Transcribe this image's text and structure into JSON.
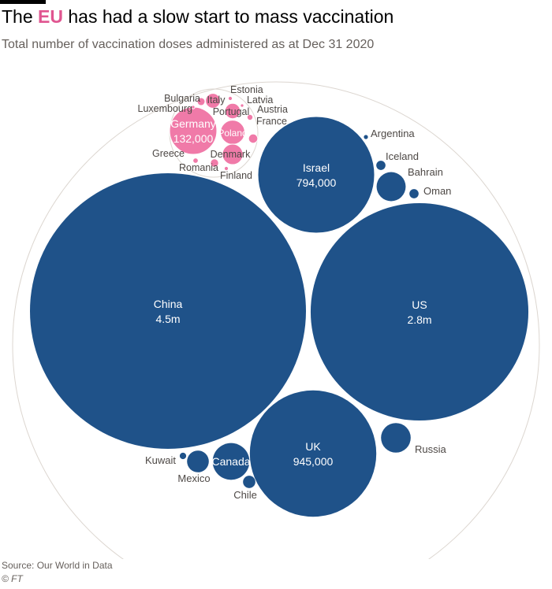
{
  "header": {
    "title_before": "The ",
    "title_highlight": "EU",
    "title_after": " has had a slow start to mass vaccination",
    "subtitle": "Total number of vaccination doses administered as at Dec 31 2020"
  },
  "footer": {
    "source": "Source: Our World in Data",
    "credit": "© FT"
  },
  "colors": {
    "eu": "#f07aa8",
    "eu_stroke": "#ffffff",
    "other": "#1f5289",
    "outline": "#dcd6d0",
    "label_dark": "#4d4845",
    "label_light": "#ffffff"
  },
  "chart_data": {
    "type": "packed-bubble",
    "unit": "doses",
    "groups": [
      "EU",
      "Non-EU"
    ],
    "items": [
      {
        "name": "China",
        "value": 4500000,
        "display": "4.5m",
        "group": "Non-EU"
      },
      {
        "name": "US",
        "value": 2800000,
        "display": "2.8m",
        "group": "Non-EU"
      },
      {
        "name": "UK",
        "value": 945000,
        "display": "945,000",
        "group": "Non-EU"
      },
      {
        "name": "Israel",
        "value": 794000,
        "display": "794,000",
        "group": "Non-EU"
      },
      {
        "name": "Germany",
        "value": 132000,
        "display": "132,000",
        "group": "EU"
      },
      {
        "name": "Russia",
        "value": 52000,
        "group": "Non-EU"
      },
      {
        "name": "Canada",
        "value": 80000,
        "group": "Non-EU"
      },
      {
        "name": "Bahrain",
        "value": 50000,
        "group": "Non-EU"
      },
      {
        "name": "Mexico",
        "value": 28000,
        "group": "Non-EU"
      },
      {
        "name": "Chile",
        "value": 9000,
        "group": "Non-EU"
      },
      {
        "name": "Oman",
        "value": 5000,
        "group": "Non-EU"
      },
      {
        "name": "Iceland",
        "value": 5000,
        "group": "Non-EU"
      },
      {
        "name": "Kuwait",
        "value": 2500,
        "group": "Non-EU"
      },
      {
        "name": "Argentina",
        "value": 1000,
        "group": "Non-EU"
      },
      {
        "name": "Poland",
        "value": 35000,
        "group": "EU"
      },
      {
        "name": "Denmark",
        "value": 25000,
        "group": "EU"
      },
      {
        "name": "Italy",
        "value": 13000,
        "group": "EU"
      },
      {
        "name": "Portugal",
        "value": 14000,
        "group": "EU"
      },
      {
        "name": "Romania",
        "value": 4000,
        "group": "EU"
      },
      {
        "name": "France",
        "value": 5000,
        "group": "EU"
      },
      {
        "name": "Bulgaria",
        "value": 3700,
        "group": "EU"
      },
      {
        "name": "Austria",
        "value": 2000,
        "group": "EU"
      },
      {
        "name": "Greece",
        "value": 1700,
        "group": "EU"
      },
      {
        "name": "Estonia",
        "value": 1000,
        "group": "EU"
      },
      {
        "name": "Finland",
        "value": 1000,
        "group": "EU"
      },
      {
        "name": "Luxembourg",
        "value": 700,
        "group": "EU"
      },
      {
        "name": "Latvia",
        "value": 700,
        "group": "EU"
      }
    ]
  }
}
